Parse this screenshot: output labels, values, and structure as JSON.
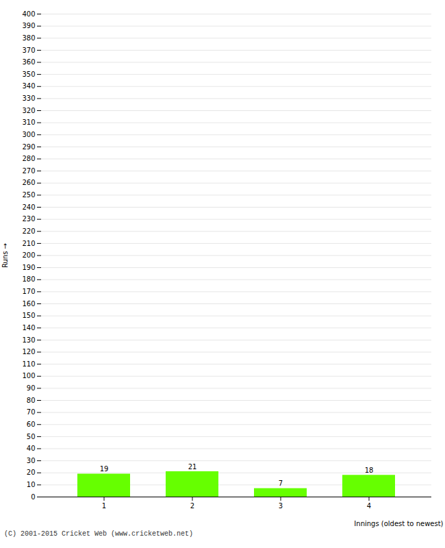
{
  "chart_data": {
    "type": "bar",
    "categories": [
      1,
      2,
      3,
      4
    ],
    "values": [
      19,
      21,
      7,
      18
    ],
    "color": "#66ff00",
    "x_label": "Innings (oldest to newest)",
    "y_label": "Runs",
    "ylim": [
      0,
      400
    ],
    "yticks": [
      0,
      10,
      20,
      30,
      40,
      50,
      60,
      70,
      80,
      90,
      100,
      110,
      120,
      130,
      140,
      150,
      160,
      170,
      180,
      190,
      200,
      210,
      220,
      230,
      240,
      250,
      260,
      270,
      280,
      290,
      300,
      310,
      320,
      330,
      340,
      350,
      360,
      370,
      380,
      390,
      400
    ],
    "grid": true,
    "data_labels": true,
    "annotations": [
      "(C) 2001-2015 Cricket Web (www.cricketweb.net)"
    ]
  }
}
